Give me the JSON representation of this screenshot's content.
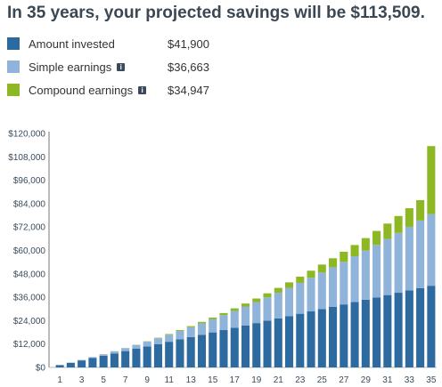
{
  "headline": "In 35 years, your projected savings will be $113,509.",
  "legend": [
    {
      "label": "Amount invested",
      "value": "$41,900",
      "color": "#2d6a9f",
      "info": false
    },
    {
      "label": "Simple earnings",
      "value": "$36,663",
      "color": "#8fb3d9",
      "info": true
    },
    {
      "label": "Compound earnings",
      "value": "$34,947",
      "color": "#8db824",
      "info": true
    }
  ],
  "info_icon": "info-icon",
  "chart_data": {
    "type": "bar",
    "stacked": true,
    "x": [
      1,
      2,
      3,
      4,
      5,
      6,
      7,
      8,
      9,
      10,
      11,
      12,
      13,
      14,
      15,
      16,
      17,
      18,
      19,
      20,
      21,
      22,
      23,
      24,
      25,
      26,
      27,
      28,
      29,
      30,
      31,
      32,
      33,
      34,
      35
    ],
    "xticks": [
      "1",
      "3",
      "5",
      "7",
      "9",
      "11",
      "13",
      "15",
      "17",
      "19",
      "21",
      "23",
      "25",
      "27",
      "29",
      "31",
      "33",
      "35"
    ],
    "yticks": [
      "$0",
      "$12,000",
      "$24,000",
      "$36,000",
      "$48,000",
      "$60,000",
      "$72,000",
      "$84,000",
      "$96,000",
      "$108,000",
      "$120,000"
    ],
    "ylim": [
      0,
      120000
    ],
    "series": [
      {
        "name": "Amount invested",
        "color": "#2d6a9f",
        "values": [
          1197,
          2394,
          3591,
          4789,
          5986,
          7183,
          8380,
          9577,
          10774,
          11971,
          13169,
          14366,
          15563,
          16760,
          17957,
          19154,
          20351,
          21549,
          22746,
          23943,
          25140,
          26337,
          27534,
          28731,
          29929,
          31126,
          32323,
          33520,
          34717,
          35914,
          37111,
          38309,
          39506,
          40703,
          41900
        ]
      },
      {
        "name": "Simple earnings",
        "color": "#8fb3d9",
        "values": [
          30,
          120,
          269,
          479,
          748,
          1078,
          1467,
          1916,
          2425,
          2993,
          3622,
          4311,
          5059,
          5868,
          6736,
          7664,
          8653,
          9701,
          10809,
          11977,
          13205,
          14493,
          15841,
          17249,
          18716,
          20244,
          21832,
          23480,
          25187,
          26955,
          28782,
          30670,
          32617,
          34625,
          36663
        ]
      },
      {
        "name": "Compound earnings",
        "color": "#8db824",
        "values": [
          0,
          2,
          7,
          17,
          33,
          57,
          90,
          135,
          192,
          263,
          350,
          454,
          578,
          721,
          887,
          1076,
          1291,
          1532,
          1801,
          2101,
          2432,
          2796,
          3195,
          3631,
          4106,
          4622,
          5180,
          5782,
          6431,
          7129,
          7878,
          8680,
          9537,
          10452,
          34947
        ]
      }
    ]
  }
}
